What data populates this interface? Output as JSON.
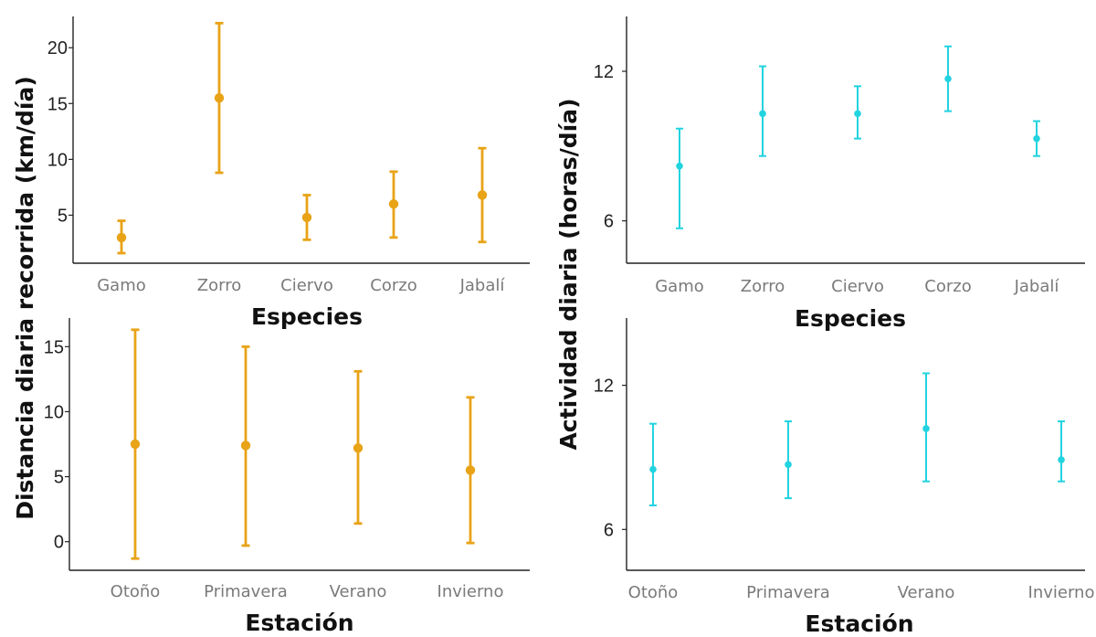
{
  "ylabels": {
    "left": "Distancia diaria recorrida (km/día)",
    "right": "Actividad diaria (horas/día)"
  },
  "chart_data": [
    {
      "type": "errorbar",
      "id": "dist_especies",
      "color": "#E8A317",
      "xlabel": "Especies",
      "ylabel": "Distancia diaria recorrida (km/día)",
      "ylim": [
        0.7,
        22.8
      ],
      "yticks": [
        5,
        10,
        15,
        20
      ],
      "categories": [
        "Gamo",
        "Zorro",
        "Ciervo",
        "Corzo",
        "Jabalí"
      ],
      "mean": [
        3.0,
        15.5,
        4.8,
        6.0,
        6.8
      ],
      "lower": [
        1.6,
        8.8,
        2.8,
        3.0,
        2.6
      ],
      "upper": [
        4.5,
        22.2,
        6.8,
        8.9,
        11.0
      ]
    },
    {
      "type": "errorbar",
      "id": "dist_estacion",
      "color": "#E8A317",
      "xlabel": "Estación",
      "ylabel": "Distancia diaria recorrida (km/día)",
      "ylim": [
        -2.2,
        17.2
      ],
      "yticks": [
        0,
        5,
        10,
        15
      ],
      "categories": [
        "Otoño",
        "Primavera",
        "Verano",
        "Invierno"
      ],
      "mean": [
        7.5,
        7.4,
        7.2,
        5.5
      ],
      "lower": [
        -1.3,
        -0.3,
        1.4,
        -0.1
      ],
      "upper": [
        16.3,
        15.0,
        13.1,
        11.1
      ]
    },
    {
      "type": "errorbar",
      "id": "act_especies",
      "color": "#22D3E0",
      "xlabel": "Especies",
      "ylabel": "Actividad diaria (horas/día)",
      "ylim": [
        4.3,
        14.2
      ],
      "yticks": [
        6,
        12
      ],
      "categories": [
        "Gamo",
        "Zorro",
        "Ciervo",
        "Corzo",
        "Jabalí"
      ],
      "mean": [
        8.2,
        10.3,
        10.3,
        11.7,
        9.3
      ],
      "lower": [
        5.7,
        8.6,
        9.3,
        10.4,
        8.6
      ],
      "upper": [
        9.7,
        12.2,
        11.4,
        13.0,
        10.0
      ]
    },
    {
      "type": "errorbar",
      "id": "act_estacion",
      "color": "#22D3E0",
      "xlabel": "Estación",
      "ylabel": "Actividad diaria (horas/día)",
      "ylim": [
        4.3,
        14.8
      ],
      "yticks": [
        6,
        12
      ],
      "categories": [
        "Otoño",
        "Primavera",
        "Verano",
        "Invierno"
      ],
      "mean": [
        8.5,
        8.7,
        10.2,
        8.9
      ],
      "lower": [
        7.0,
        7.3,
        8.0,
        8.0
      ],
      "upper": [
        10.4,
        10.5,
        12.5,
        10.5
      ]
    }
  ]
}
